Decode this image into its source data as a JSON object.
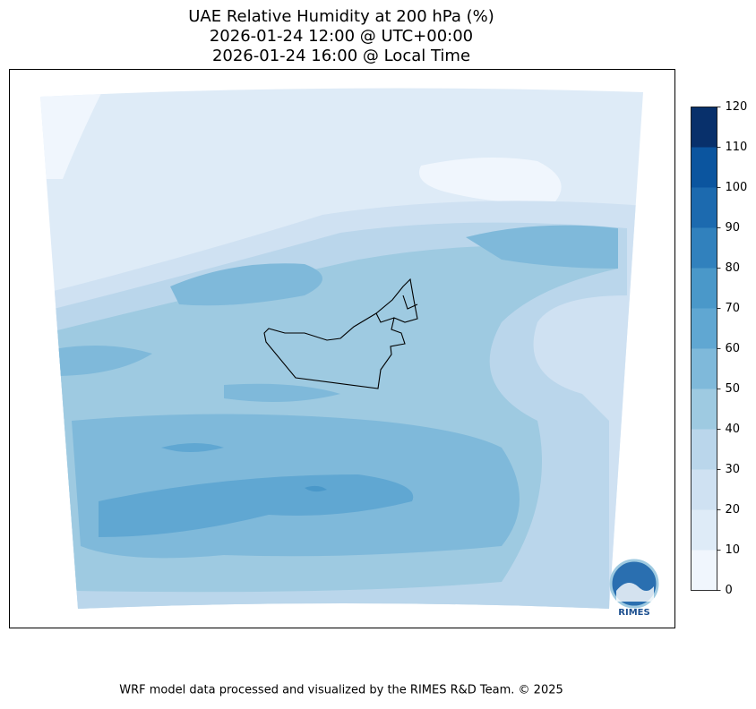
{
  "title": [
    "UAE Relative Humidity at 200 hPa (%)",
    "2026-01-24 12:00 @ UTC+00:00",
    "2026-01-24 16:00 @ Local Time"
  ],
  "colorbar": {
    "ticks": [
      0,
      10,
      20,
      30,
      40,
      50,
      60,
      70,
      80,
      90,
      100,
      110,
      120
    ],
    "colors": [
      "#f0f6fd",
      "#deebf7",
      "#cfe1f2",
      "#bad6eb",
      "#9ecae1",
      "#7fb9da",
      "#60a7d2",
      "#4a98c9",
      "#3181bd",
      "#1c6aaf",
      "#0b559f",
      "#08306b"
    ]
  },
  "logo": "RIMES",
  "footer": "WRF model data processed and visualized by the RIMES R&D Team. © 2025"
}
